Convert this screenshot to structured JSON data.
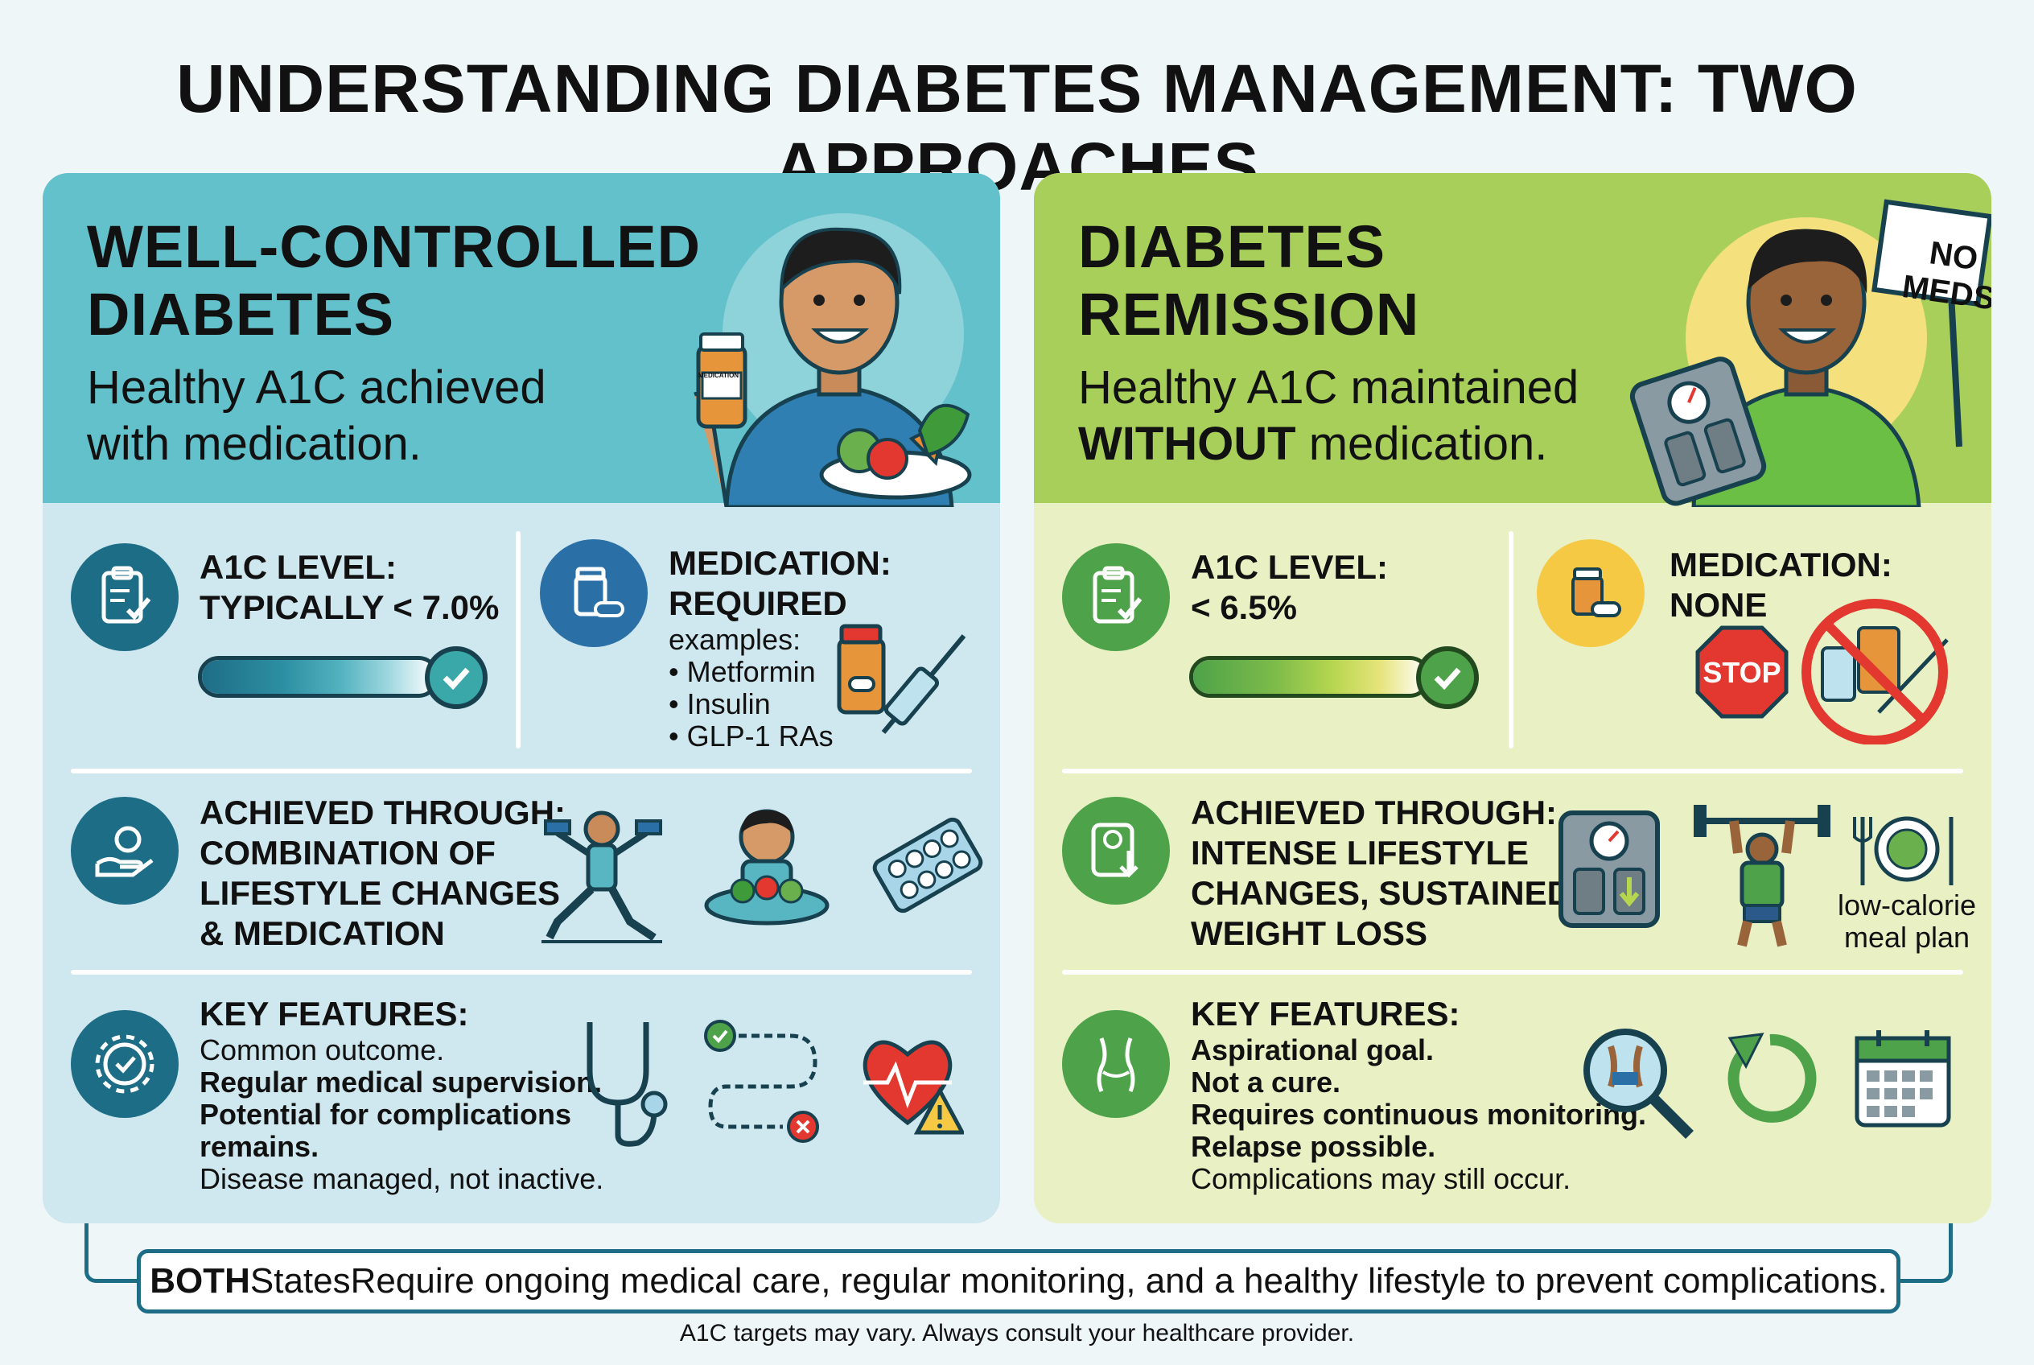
{
  "title": "UNDERSTANDING DIABETES MANAGEMENT: TWO APPROACHES",
  "left": {
    "heading_line1": "WELL-CONTROLLED",
    "heading_line2": "DIABETES",
    "sub_line1": "Healthy A1C achieved",
    "sub_line2": "with medication.",
    "pill_label": "MEDICATION",
    "a1c_label1": "A1C LEVEL:",
    "a1c_label2": "TYPICALLY < 7.0%",
    "med_label1": "MEDICATION:",
    "med_label2": "REQUIRED",
    "med_examples_label": "examples:",
    "med_examples": [
      "• Metformin",
      "• Insulin",
      "• GLP-1 RAs"
    ],
    "achieved_lines": [
      "ACHIEVED THROUGH:",
      "COMBINATION OF",
      "LIFESTYLE CHANGES",
      "& MEDICATION"
    ],
    "key_label": "KEY FEATURES:",
    "key_1": "Common outcome.",
    "key_2": "Regular medical supervision.",
    "key_3a": "Potential for complications",
    "key_3b": "remains.",
    "key_4": "Disease managed, not inactive."
  },
  "right": {
    "heading_line1": "DIABETES",
    "heading_line2": "REMISSION",
    "sub_line1": "Healthy A1C maintained",
    "sub_bold": "WITHOUT",
    "sub_line2_rest": " medication.",
    "sign_line1": "NO",
    "sign_line2": "MEDS",
    "a1c_label1": "A1C LEVEL:",
    "a1c_label2": "< 6.5%",
    "med_label1": "MEDICATION:",
    "med_label2": "NONE",
    "stop_label": "STOP",
    "achieved_lines": [
      "ACHIEVED THROUGH:",
      "INTENSE LIFESTYLE",
      "CHANGES, SUSTAINED",
      "WEIGHT LOSS"
    ],
    "meal_caption1": "low-calorie",
    "meal_caption2": "meal plan",
    "key_label": "KEY FEATURES:",
    "key_1": "Aspirational goal.",
    "key_2": "Not a cure.",
    "key_3": "Requires continuous monitoring.",
    "key_4": "Relapse possible.",
    "key_5": "Complications may still occur."
  },
  "bottom": {
    "bold": "BOTH",
    "states": "States",
    "rest": "Require ongoing medical care, regular monitoring, and a healthy lifestyle to prevent complications."
  },
  "footnote": "A1C targets may vary. Always consult your healthcare provider.",
  "colors": {
    "left_head": "#63c1cb",
    "left_body": "#cfe7ee",
    "left_icon": "#1e6d86",
    "right_head": "#a8cf5a",
    "right_body": "#e8f0c4",
    "right_icon": "#4ea249",
    "med_none_icon": "#f6c944"
  }
}
